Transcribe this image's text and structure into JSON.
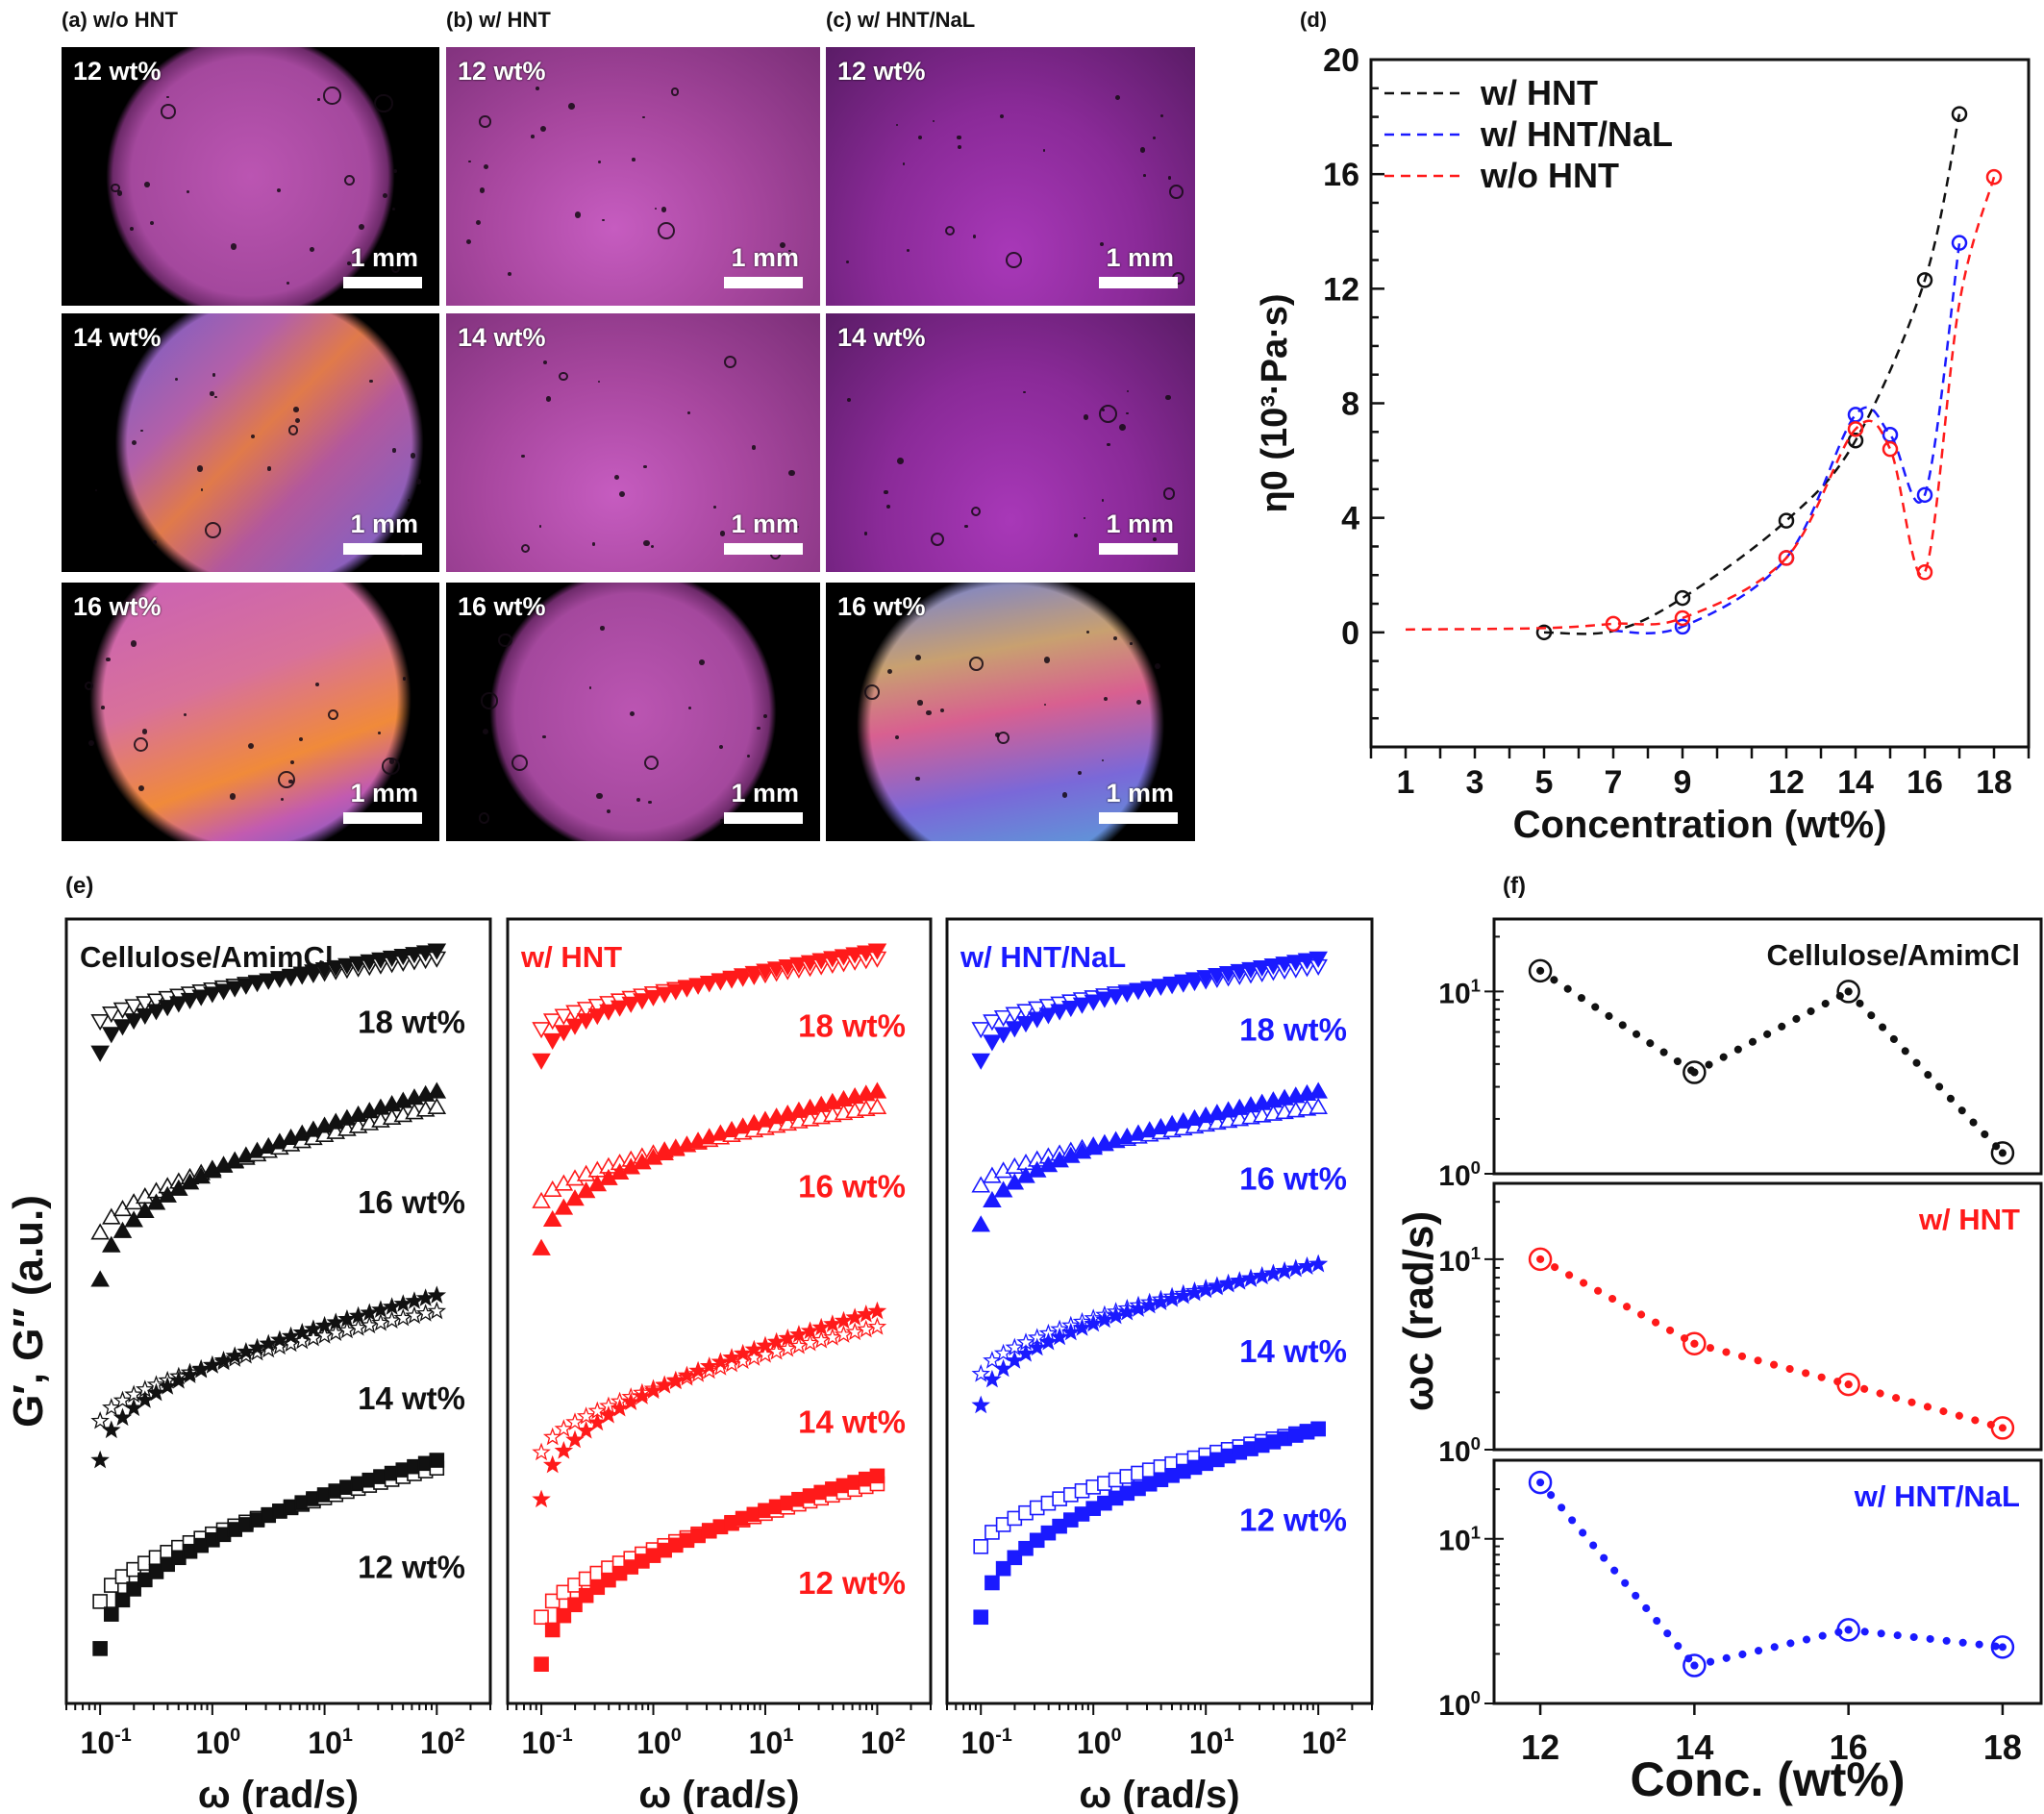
{
  "photos": {
    "columns": [
      {
        "label": "(a) w/o HNT"
      },
      {
        "label": "(b) w/ HNT"
      },
      {
        "label": "(c) w/ HNT/NaL"
      }
    ],
    "rows": [
      "12 wt%",
      "14 wt%",
      "16 wt%"
    ],
    "scale_bar": "1 mm",
    "tiles": [
      {
        "col": 0,
        "row": 0,
        "style": "circle-pink"
      },
      {
        "col": 1,
        "row": 0,
        "style": "pink"
      },
      {
        "col": 2,
        "row": 0,
        "style": "violet"
      },
      {
        "col": 0,
        "row": 1,
        "style": "circle-birefringent"
      },
      {
        "col": 1,
        "row": 1,
        "style": "pink"
      },
      {
        "col": 2,
        "row": 1,
        "style": "violet"
      },
      {
        "col": 0,
        "row": 2,
        "style": "circle-birefringent-orange"
      },
      {
        "col": 1,
        "row": 2,
        "style": "circle-pink"
      },
      {
        "col": 2,
        "row": 2,
        "style": "circle-birefringent-blue"
      }
    ]
  },
  "colors": {
    "black": "#111111",
    "red": "#ff1a1a",
    "blue": "#1a1aff"
  },
  "chart_data": [
    {
      "id": "d",
      "panel_label": "(d)",
      "type": "line",
      "xlabel": "Concentration (wt%)",
      "ylabel": "η0 (10³·Pa·s)",
      "xlim": [
        0,
        19
      ],
      "ylim": [
        -4,
        20
      ],
      "xticks": [
        1,
        3,
        5,
        7,
        9,
        12,
        14,
        16,
        18
      ],
      "yticks": [
        0,
        4,
        8,
        12,
        16,
        20
      ],
      "legend_position": "top-left",
      "series": [
        {
          "name": "w/ HNT",
          "color": "#111111",
          "x": [
            5,
            7,
            9,
            12,
            14,
            16,
            17
          ],
          "y": [
            0.0,
            0.05,
            1.2,
            3.9,
            6.7,
            12.3,
            18.1
          ],
          "markers": [
            5,
            9,
            12,
            14,
            16,
            17
          ]
        },
        {
          "name": "w/ HNT/NaL",
          "color": "#1a1aff",
          "x": [
            7,
            9,
            12,
            14,
            15,
            16,
            17
          ],
          "y": [
            0.05,
            0.2,
            2.6,
            7.6,
            6.9,
            4.8,
            13.6
          ],
          "markers": [
            9,
            12,
            14,
            15,
            16,
            17
          ]
        },
        {
          "name": "w/o HNT",
          "color": "#ff1a1a",
          "x": [
            1,
            5,
            7,
            9,
            12,
            14,
            15,
            16,
            17,
            18
          ],
          "y": [
            0.1,
            0.15,
            0.3,
            0.5,
            2.6,
            7.1,
            6.4,
            2.1,
            11.5,
            15.9
          ],
          "markers": [
            7,
            9,
            12,
            14,
            15,
            16,
            18
          ]
        }
      ]
    },
    {
      "id": "e",
      "panel_label": "(e)",
      "type": "scatter",
      "ylabel": "G′, G″ (a.u.)",
      "xlabel": "ω (rad/s)",
      "xscale": "log",
      "xlim": [
        0.05,
        300
      ],
      "xticks": [
        0.1,
        1,
        10,
        100
      ],
      "xtick_labels": [
        {
          "base": "10",
          "exp": "-1"
        },
        {
          "base": "10",
          "exp": "0"
        },
        {
          "base": "10",
          "exp": "1"
        },
        {
          "base": "10",
          "exp": "2"
        }
      ],
      "note": "curves vertically offset, arbitrary units; y values are relative log modulus (0 = panel bottom, 10 = panel top)",
      "subplots": [
        {
          "title": "Cellulose/AmimCl",
          "color": "#111111",
          "groups": [
            {
              "label": "18 wt%",
              "marker": "triangle-down",
              "Gpp_start": 8.7,
              "Gpp_end": 9.5,
              "Gp_start": 8.3,
              "Gp_end": 9.6
            },
            {
              "label": "16 wt%",
              "marker": "triangle-up",
              "Gpp_start": 6.0,
              "Gpp_end": 7.6,
              "Gp_start": 5.4,
              "Gp_end": 7.8
            },
            {
              "label": "14 wt%",
              "marker": "star",
              "Gpp_start": 3.6,
              "Gpp_end": 5.0,
              "Gp_start": 3.1,
              "Gp_end": 5.2
            },
            {
              "label": "12 wt%",
              "marker": "square",
              "Gpp_start": 1.3,
              "Gpp_end": 3.0,
              "Gp_start": 0.7,
              "Gp_end": 3.1
            }
          ]
        },
        {
          "title": "w/ HNT",
          "color": "#ff1a1a",
          "groups": [
            {
              "label": "18 wt%",
              "marker": "triangle-down",
              "Gpp_start": 8.6,
              "Gpp_end": 9.5,
              "Gp_start": 8.2,
              "Gp_end": 9.6
            },
            {
              "label": "16 wt%",
              "marker": "triangle-up",
              "Gpp_start": 6.4,
              "Gpp_end": 7.6,
              "Gp_start": 5.8,
              "Gp_end": 7.8
            },
            {
              "label": "14 wt%",
              "marker": "star",
              "Gpp_start": 3.2,
              "Gpp_end": 4.8,
              "Gp_start": 2.6,
              "Gp_end": 5.0
            },
            {
              "label": "12 wt%",
              "marker": "square",
              "Gpp_start": 1.1,
              "Gpp_end": 2.8,
              "Gp_start": 0.5,
              "Gp_end": 2.9
            }
          ]
        },
        {
          "title": "w/ HNT/NaL",
          "color": "#1a1aff",
          "groups": [
            {
              "label": "18 wt%",
              "marker": "triangle-down",
              "Gpp_start": 8.6,
              "Gpp_end": 9.4,
              "Gp_start": 8.2,
              "Gp_end": 9.5
            },
            {
              "label": "16 wt%",
              "marker": "triangle-up",
              "Gpp_start": 6.6,
              "Gpp_end": 7.6,
              "Gp_start": 6.1,
              "Gp_end": 7.8
            },
            {
              "label": "14 wt%",
              "marker": "star",
              "Gpp_start": 4.2,
              "Gpp_end": 5.6,
              "Gp_start": 3.8,
              "Gp_end": 5.6
            },
            {
              "label": "12 wt%",
              "marker": "square",
              "Gpp_start": 2.0,
              "Gpp_end": 3.5,
              "Gp_start": 1.1,
              "Gp_end": 3.5
            }
          ]
        }
      ]
    },
    {
      "id": "f",
      "panel_label": "(f)",
      "type": "line",
      "xlabel": "Conc. (wt%)",
      "ylabel": "ωc (rad/s)",
      "yscale": "log",
      "xlim": [
        11.4,
        18.5
      ],
      "xticks": [
        12,
        14,
        16,
        18
      ],
      "ylim": [
        1,
        28
      ],
      "ytick_labels": [
        {
          "base": "10",
          "exp": "0"
        },
        {
          "base": "10",
          "exp": "1"
        }
      ],
      "subplots": [
        {
          "title": "Cellulose/AmimCl",
          "color": "#111111",
          "x": [
            12,
            14,
            16,
            18
          ],
          "y": [
            13,
            3.6,
            10,
            1.3
          ]
        },
        {
          "title": "w/ HNT",
          "color": "#ff1a1a",
          "x": [
            12,
            14,
            16,
            18
          ],
          "y": [
            10,
            3.6,
            2.2,
            1.3
          ]
        },
        {
          "title": "w/ HNT/NaL",
          "color": "#1a1aff",
          "x": [
            12,
            14,
            16,
            18
          ],
          "y": [
            22,
            1.7,
            2.8,
            2.2
          ]
        }
      ]
    }
  ]
}
